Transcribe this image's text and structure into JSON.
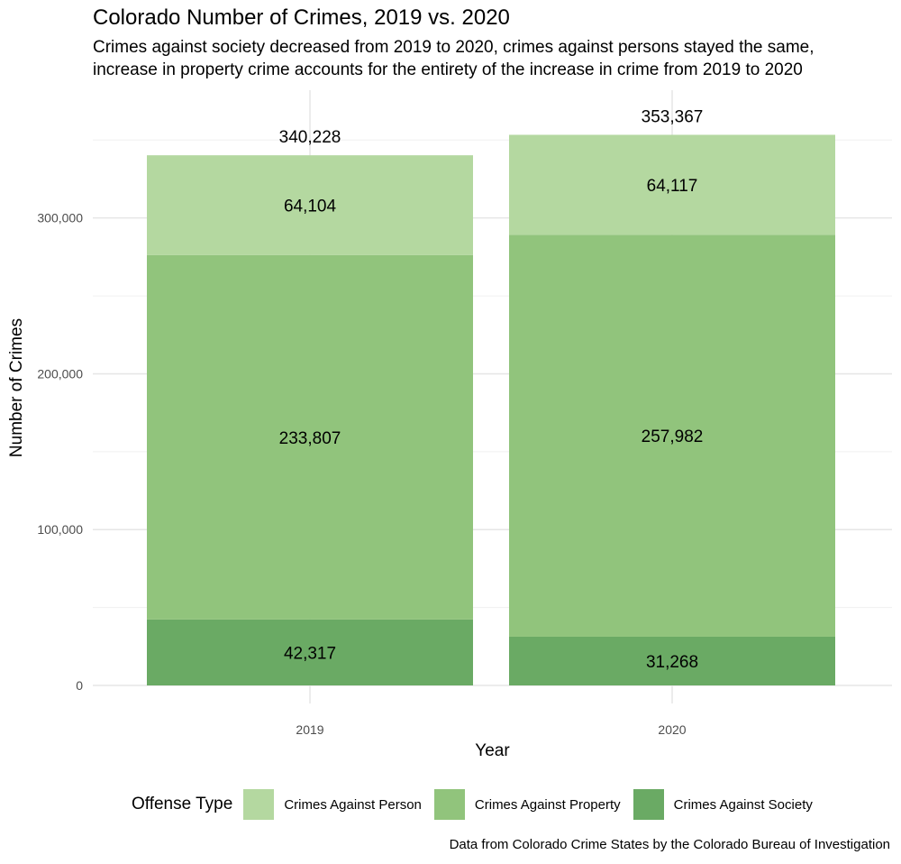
{
  "chart_data": {
    "type": "bar",
    "stacked": true,
    "title": "Colorado Number of Crimes, 2019 vs. 2020",
    "subtitle": [
      "Crimes against society decreased from 2019 to 2020, crimes against persons stayed the same,",
      "increase in property crime accounts for the entirety of the increase in crime from 2019 to 2020"
    ],
    "xlabel": "Year",
    "ylabel": "Number of Crimes",
    "categories": [
      "2019",
      "2020"
    ],
    "series": [
      {
        "name": "Crimes Against Society",
        "values": [
          42317,
          31268
        ],
        "labels": [
          "42,317",
          "31,268"
        ],
        "color": "#6aaa64"
      },
      {
        "name": "Crimes Against Property",
        "values": [
          233807,
          257982
        ],
        "labels": [
          "233,807",
          "257,982"
        ],
        "color": "#91c47c"
      },
      {
        "name": "Crimes Against Person",
        "values": [
          64104,
          64117
        ],
        "labels": [
          "64,104",
          "64,117"
        ],
        "color": "#b4d8a0"
      }
    ],
    "totals": [
      340228,
      353367
    ],
    "total_labels": [
      "340,228",
      "353,367"
    ],
    "yticks": [
      0,
      100000,
      200000,
      300000
    ],
    "ytick_labels": [
      "0",
      "100,000",
      "200,000",
      "300,000"
    ],
    "ylim": [
      0,
      382000
    ],
    "grid": true,
    "legend": {
      "title": "Offense Type",
      "position": "bottom",
      "entries": [
        {
          "label": "Crimes Against Person",
          "color": "#b4d8a0"
        },
        {
          "label": "Crimes Against Property",
          "color": "#91c47c"
        },
        {
          "label": "Crimes Against Society",
          "color": "#6aaa64"
        }
      ]
    },
    "caption": "Data from Colorado Crime States by the Colorado Bureau of Investigation"
  }
}
